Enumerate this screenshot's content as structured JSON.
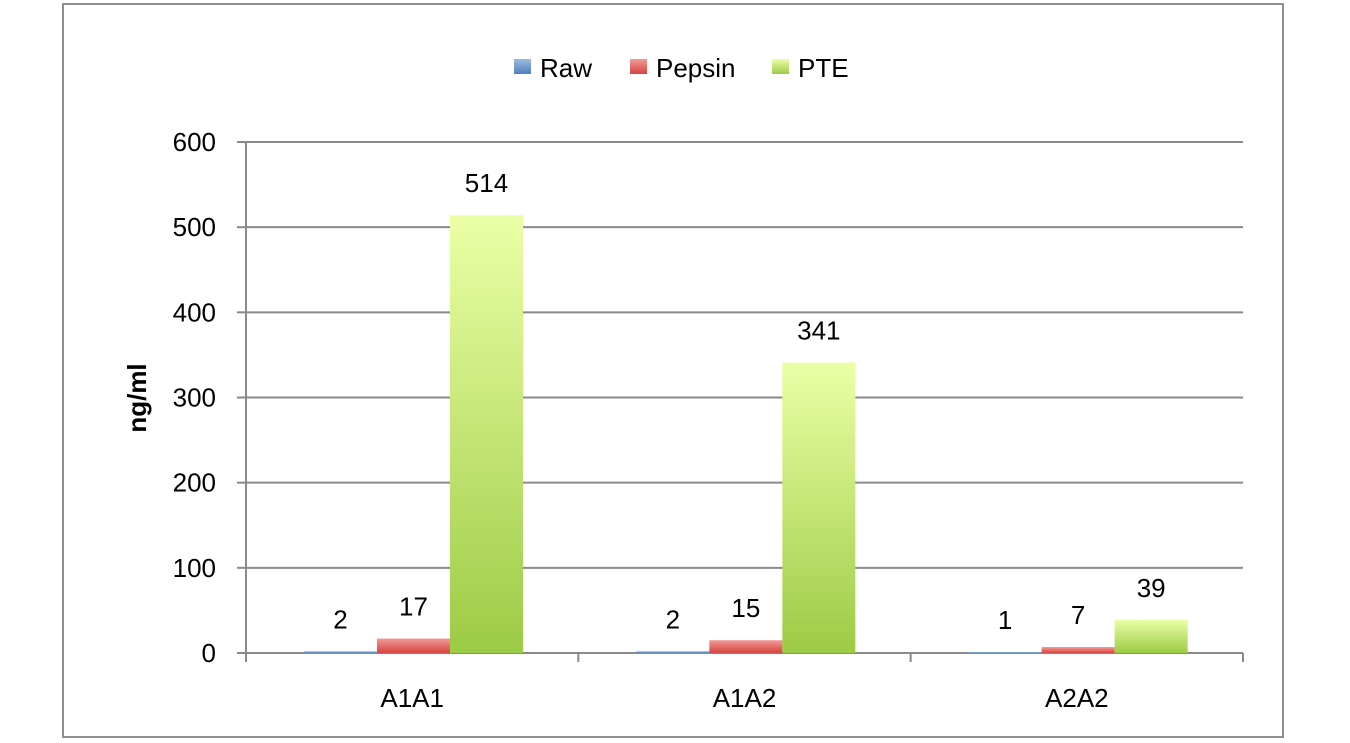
{
  "chart_data": {
    "type": "bar",
    "title": "",
    "xlabel": "",
    "ylabel": "ng/ml",
    "ylim": [
      0,
      600
    ],
    "yticks": [
      0,
      100,
      200,
      300,
      400,
      500,
      600
    ],
    "grid": true,
    "legend_position": "top",
    "categories": [
      "A1A1",
      "A1A2",
      "A2A2"
    ],
    "series": [
      {
        "name": "Raw",
        "values": [
          2,
          2,
          1
        ],
        "color": "#4f81bd",
        "labels": [
          "2",
          "2",
          "1"
        ]
      },
      {
        "name": "Pepsin",
        "values": [
          17,
          15,
          7
        ],
        "color": "#e0504d",
        "labels": [
          "17",
          "15",
          "7"
        ]
      },
      {
        "name": "PTE",
        "values": [
          514,
          341,
          39
        ],
        "color": "#a9d751",
        "labels": [
          "514",
          "341",
          "39"
        ]
      }
    ]
  }
}
